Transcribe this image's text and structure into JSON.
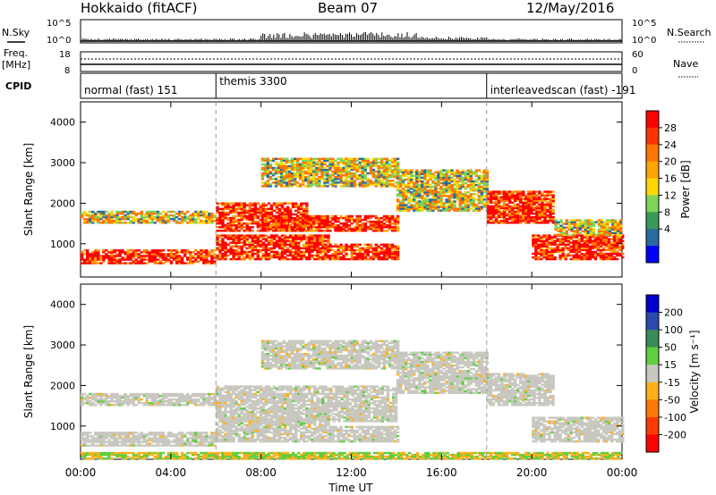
{
  "header": {
    "title": "Hokkaido (fitACF)",
    "beam": "Beam 07",
    "date": "12/May/2016"
  },
  "summary_panel": {
    "nsky_label": "N.Sky",
    "nsearch_label": "N.Search",
    "freq_label_1": "Freq.",
    "freq_label_2": "[MHz]",
    "nave_label": "Nave",
    "cpid_label": "CPID",
    "nsky_ticks": [
      "10^5",
      "10^0"
    ],
    "nsearch_ticks": [
      "10^5",
      "10^0"
    ],
    "freq_ticks": [
      "18",
      "8"
    ],
    "nave_ticks": [
      "60",
      "0"
    ],
    "cpid_segments": [
      {
        "label": "normal (fast) 151",
        "start_hour": 0,
        "end_hour": 6
      },
      {
        "label": "themis 3300",
        "start_hour": 6,
        "end_hour": 18
      },
      {
        "label": "interleavedscan (fast) -191",
        "start_hour": 18,
        "end_hour": 24
      }
    ]
  },
  "power_colorbar": {
    "label": "Power [dB]",
    "ticks": [
      "28",
      "24",
      "20",
      "16",
      "12",
      "8",
      "4"
    ],
    "colors": [
      "#ff0000",
      "#ff3300",
      "#ff7700",
      "#ffa500",
      "#ffd700",
      "#7fd45a",
      "#3a9a5a",
      "#2a6aa0",
      "#0000ff"
    ]
  },
  "velocity_colorbar": {
    "label": "Velocity [m s⁻¹]",
    "ticks": [
      "200",
      "100",
      "50",
      "15",
      "-15",
      "-50",
      "-100",
      "-200"
    ],
    "colors": [
      "#0000cc",
      "#2a4ab0",
      "#3a8a5a",
      "#5fcf3f",
      "#c8c8c0",
      "#ffb01a",
      "#ff7a00",
      "#ff3a00",
      "#ff0000"
    ]
  },
  "chart_data": [
    {
      "type": "heatmap",
      "name": "power",
      "ylabel": "Slant Range [km]",
      "xlabel": "Time UT",
      "x_ticks": [
        "00:00",
        "04:00",
        "08:00",
        "12:00",
        "16:00",
        "20:00",
        "00:00"
      ],
      "y_ticks": [
        "1000",
        "2000",
        "3000",
        "4000"
      ],
      "xlim": [
        0,
        24
      ],
      "ylim": [
        180,
        4500
      ],
      "bands": [
        {
          "t0": 0,
          "t1": 6,
          "r0": 500,
          "r1": 820,
          "level": "high"
        },
        {
          "t0": 0,
          "t1": 6,
          "r0": 1500,
          "r1": 1800,
          "level": "mid"
        },
        {
          "t0": 6,
          "t1": 10,
          "r0": 1300,
          "r1": 2000,
          "level": "high"
        },
        {
          "t0": 8,
          "t1": 14,
          "r0": 1300,
          "r1": 1700,
          "level": "high"
        },
        {
          "t0": 11,
          "t1": 14,
          "r0": 600,
          "r1": 1000,
          "level": "high"
        },
        {
          "t0": 6,
          "t1": 11,
          "r0": 600,
          "r1": 1200,
          "level": "high"
        },
        {
          "t0": 8,
          "t1": 14,
          "r0": 2400,
          "r1": 3100,
          "level": "mid"
        },
        {
          "t0": 14,
          "t1": 18,
          "r0": 1800,
          "r1": 2800,
          "level": "mid"
        },
        {
          "t0": 18,
          "t1": 21,
          "r0": 1500,
          "r1": 2300,
          "level": "high"
        },
        {
          "t0": 20,
          "t1": 24,
          "r0": 600,
          "r1": 1200,
          "level": "high"
        },
        {
          "t0": 21,
          "t1": 24,
          "r0": 1200,
          "r1": 1600,
          "level": "mid"
        }
      ]
    },
    {
      "type": "heatmap",
      "name": "velocity",
      "ylabel": "Slant Range [km]",
      "xlabel": "Time UT",
      "x_ticks": [
        "00:00",
        "04:00",
        "08:00",
        "12:00",
        "16:00",
        "20:00",
        "00:00"
      ],
      "y_ticks": [
        "1000",
        "2000",
        "3000",
        "4000"
      ],
      "xlim": [
        0,
        24
      ],
      "ylim": [
        180,
        4500
      ],
      "bands": [
        {
          "t0": 0,
          "t1": 6,
          "r0": 500,
          "r1": 820,
          "level": "ground"
        },
        {
          "t0": 0,
          "t1": 6,
          "r0": 1500,
          "r1": 1800,
          "level": "ground"
        },
        {
          "t0": 6,
          "t1": 14,
          "r0": 1100,
          "r1": 2000,
          "level": "ground"
        },
        {
          "t0": 6,
          "t1": 11,
          "r0": 600,
          "r1": 1200,
          "level": "ground"
        },
        {
          "t0": 11,
          "t1": 14,
          "r0": 600,
          "r1": 1000,
          "level": "ground"
        },
        {
          "t0": 8,
          "t1": 14,
          "r0": 2400,
          "r1": 3100,
          "level": "ground"
        },
        {
          "t0": 14,
          "t1": 18,
          "r0": 1800,
          "r1": 2800,
          "level": "ground"
        },
        {
          "t0": 18,
          "t1": 21,
          "r0": 1500,
          "r1": 2300,
          "level": "ground"
        },
        {
          "t0": 20,
          "t1": 24,
          "r0": 600,
          "r1": 1200,
          "level": "ground"
        },
        {
          "t0": 0,
          "t1": 24,
          "r0": 180,
          "r1": 350,
          "level": "low"
        }
      ]
    }
  ]
}
